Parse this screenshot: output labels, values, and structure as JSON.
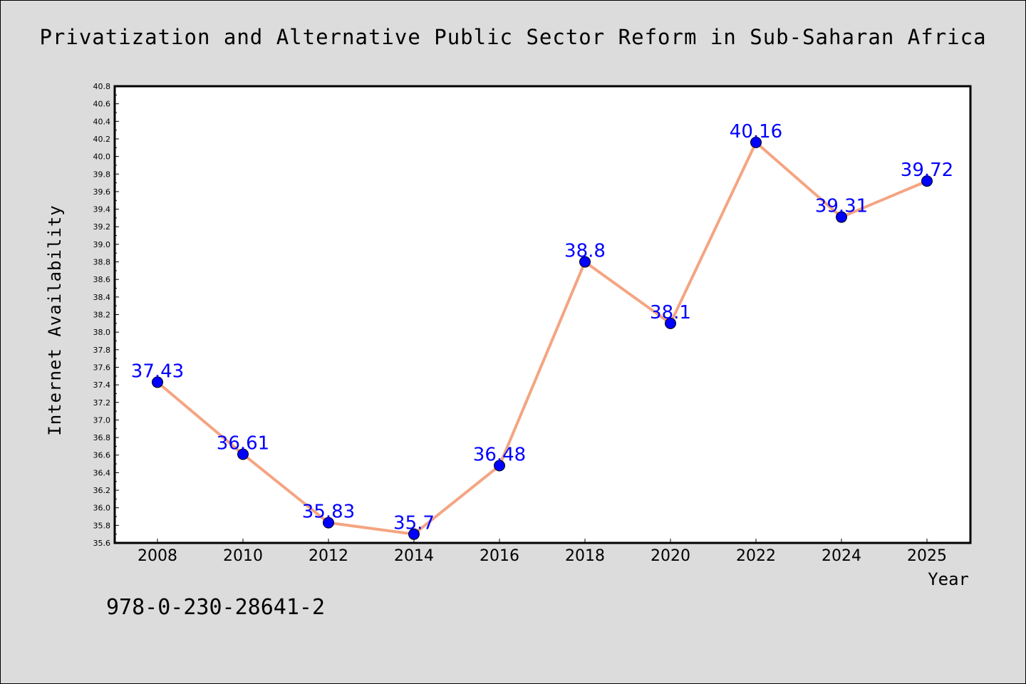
{
  "chart_data": {
    "type": "line",
    "title": "Privatization and Alternative Public Sector Reform in Sub-Saharan Africa",
    "xlabel": "Year",
    "ylabel": "Internet Availability",
    "x": [
      "2008",
      "2010",
      "2012",
      "2014",
      "2016",
      "2018",
      "2020",
      "2022",
      "2024",
      "2025"
    ],
    "series": [
      {
        "values": [
          37.43,
          36.61,
          35.83,
          35.7,
          36.48,
          38.8,
          38.1,
          40.16,
          39.31,
          39.72
        ],
        "labels": [
          "37.43",
          "36.61",
          "35.83",
          "35.7",
          "36.48",
          "38.8",
          "38.1",
          "40.16",
          "39.31",
          "39.72"
        ]
      }
    ],
    "ylim": [
      35.6,
      40.8
    ],
    "yticks": [
      "35.6",
      "35.8",
      "36.0",
      "36.2",
      "36.4",
      "36.6",
      "36.8",
      "37.0",
      "37.2",
      "37.4",
      "37.6",
      "37.8",
      "38.0",
      "38.2",
      "38.4",
      "38.6",
      "38.8",
      "39.0",
      "39.2",
      "39.4",
      "39.6",
      "39.8",
      "40.0",
      "40.2",
      "40.4",
      "40.6",
      "40.8"
    ],
    "grid": false,
    "line_color": "#f4a582",
    "marker_color": "#0000ff",
    "label_color": "#0000ff",
    "background": "#dcdcdc",
    "plot_background": "#ffffff"
  },
  "footer": {
    "code": "978-0-230-28641-2"
  }
}
